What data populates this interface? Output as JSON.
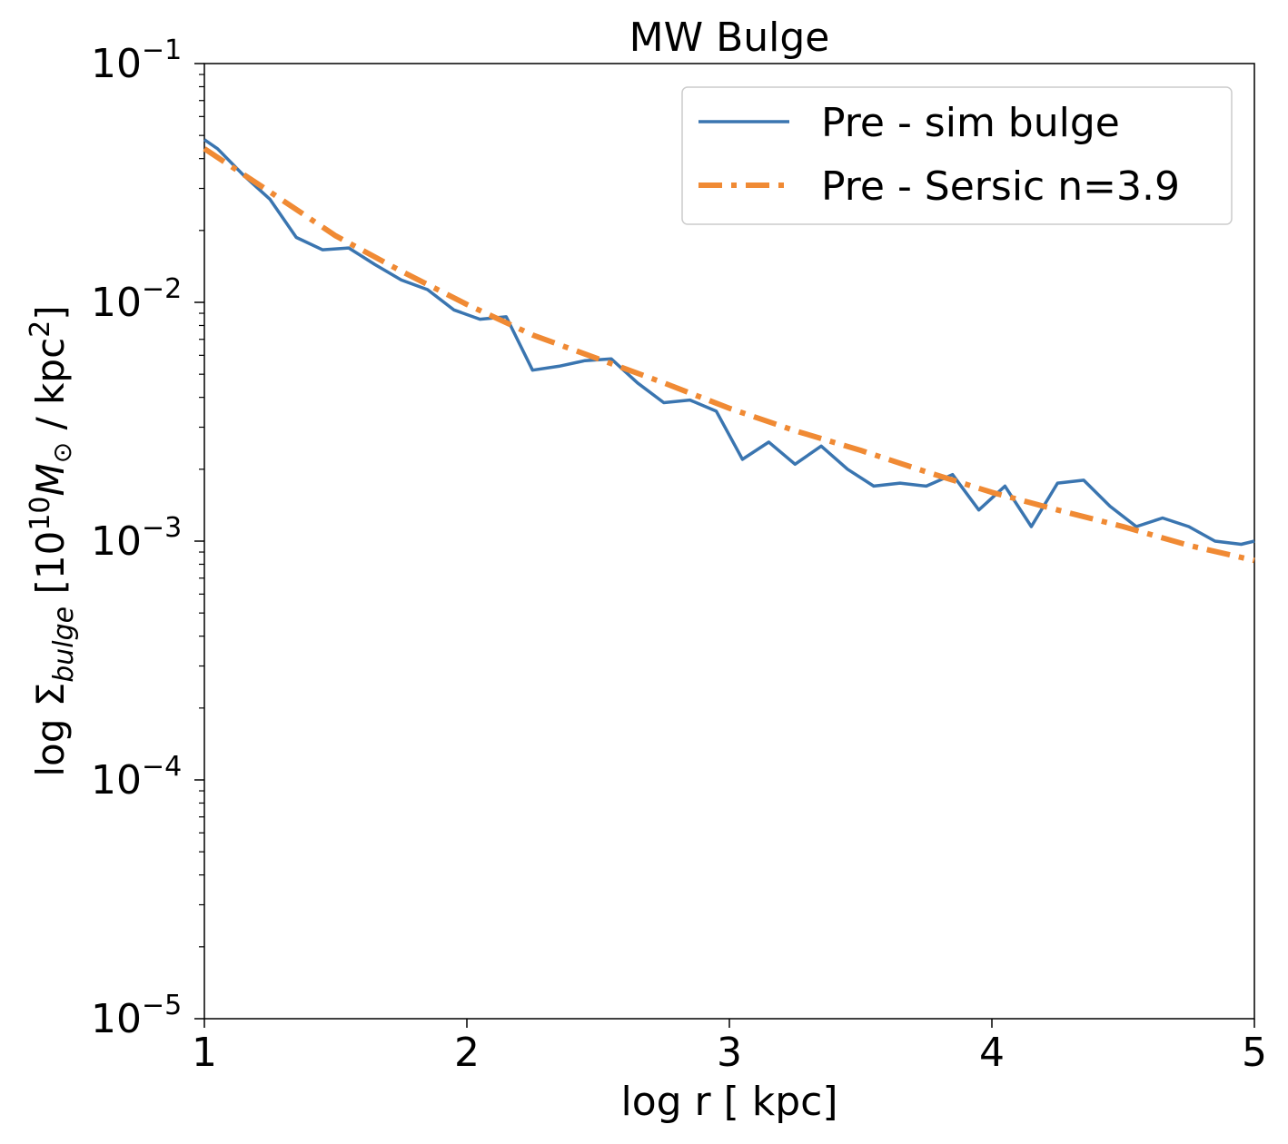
{
  "chart_data": {
    "type": "line",
    "title": "MW Bulge",
    "xlabel": "log r [ kpc]",
    "ylabel": {
      "prefix": "log Σ",
      "sub": "bulge",
      "mid": " [10",
      "sup": "10",
      "m": "M",
      "msub": "⊙",
      "unit": "  / kpc",
      "unitsup": "2",
      "close": "]"
    },
    "xlim": [
      1,
      5
    ],
    "ylim": [
      1e-05,
      0.1
    ],
    "yscale": "log",
    "grid": false,
    "legend_position": "top-right",
    "xticks": [
      {
        "value": 1,
        "label": "1"
      },
      {
        "value": 2,
        "label": "2"
      },
      {
        "value": 3,
        "label": "3"
      },
      {
        "value": 4,
        "label": "4"
      },
      {
        "value": 5,
        "label": "5"
      }
    ],
    "yticks": [
      {
        "value": 0.1,
        "base": "10",
        "exp": "−1"
      },
      {
        "value": 0.01,
        "base": "10",
        "exp": "−2"
      },
      {
        "value": 0.001,
        "base": "10",
        "exp": "−3"
      },
      {
        "value": 0.0001,
        "base": "10",
        "exp": "−4"
      },
      {
        "value": 1e-05,
        "base": "10",
        "exp": "−5"
      }
    ],
    "series": [
      {
        "name": "Pre - sim bulge",
        "color": "#3a75b0",
        "style": "solid",
        "x": [
          1.0,
          1.05,
          1.15,
          1.25,
          1.35,
          1.45,
          1.55,
          1.65,
          1.75,
          1.85,
          1.95,
          2.05,
          2.15,
          2.25,
          2.35,
          2.45,
          2.55,
          2.65,
          2.75,
          2.85,
          2.95,
          3.05,
          3.15,
          3.25,
          3.35,
          3.45,
          3.55,
          3.65,
          3.75,
          3.85,
          3.95,
          4.05,
          4.15,
          4.25,
          4.35,
          4.45,
          4.55,
          4.65,
          4.75,
          4.85,
          4.95,
          5.0
        ],
        "y": [
          0.048,
          0.044,
          0.034,
          0.027,
          0.0187,
          0.0166,
          0.0169,
          0.0144,
          0.0124,
          0.0113,
          0.0093,
          0.0085,
          0.0087,
          0.0052,
          0.0054,
          0.0057,
          0.0058,
          0.0046,
          0.0038,
          0.0039,
          0.0035,
          0.0022,
          0.0026,
          0.0021,
          0.0025,
          0.002,
          0.0017,
          0.00175,
          0.0017,
          0.0019,
          0.00135,
          0.0017,
          0.00115,
          0.00175,
          0.0018,
          0.0014,
          0.00115,
          0.00125,
          0.00115,
          0.001,
          0.00097,
          0.001
        ]
      },
      {
        "name": "Pre - Sersic n=3.9",
        "color": "#f08a34",
        "style": "dashdot",
        "x": [
          1.0,
          1.25,
          1.5,
          1.75,
          2.0,
          2.25,
          2.5,
          2.75,
          3.0,
          3.25,
          3.5,
          3.75,
          4.0,
          4.25,
          4.5,
          4.75,
          5.0
        ],
        "y": [
          0.044,
          0.029,
          0.019,
          0.0135,
          0.0098,
          0.0073,
          0.0058,
          0.0046,
          0.0036,
          0.0029,
          0.0024,
          0.00195,
          0.0016,
          0.00135,
          0.00115,
          0.00096,
          0.00083
        ]
      }
    ]
  }
}
